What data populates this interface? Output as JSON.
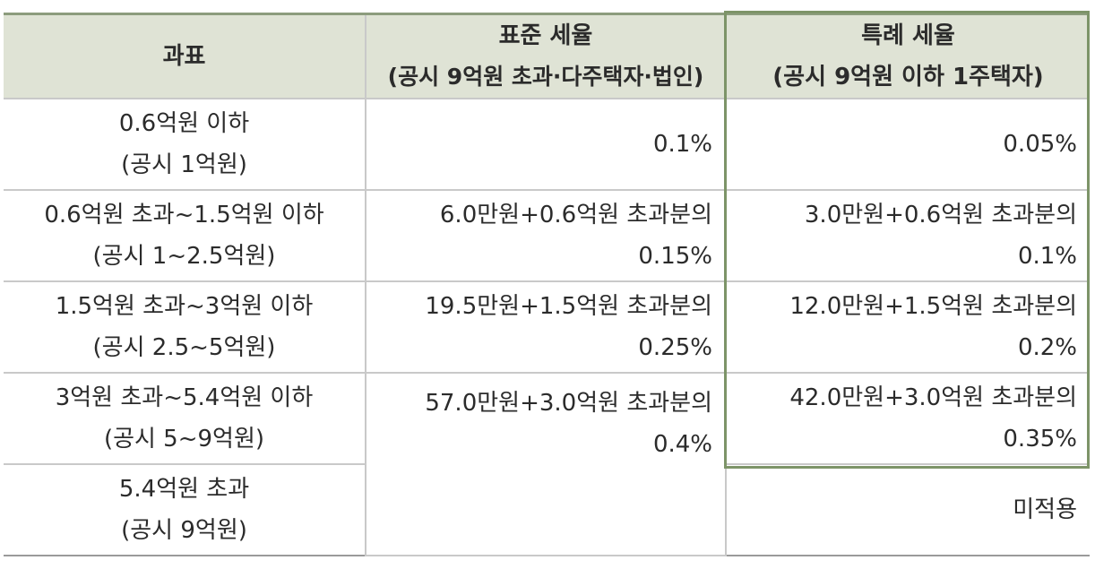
{
  "header": {
    "col1": "과표",
    "col2_line1": "표준 세율",
    "col2_line2": "(공시 9억원 초과·다주택자·법인)",
    "col3_line1": "특례 세율",
    "col3_line2": "(공시 9억원 이하 1주택자)"
  },
  "rows": [
    {
      "base1": "0.6억원 이하",
      "base2": "(공시 1억원)",
      "std1": "0.1%",
      "std2": "",
      "sp1": "0.05%",
      "sp2": ""
    },
    {
      "base1": "0.6억원 초과~1.5억원 이하",
      "base2": "(공시 1~2.5억원)",
      "std1": "6.0만원+0.6억원 초과분의",
      "std2": "0.15%",
      "sp1": "3.0만원+0.6억원 초과분의",
      "sp2": "0.1%"
    },
    {
      "base1": "1.5억원 초과~3억원 이하",
      "base2": "(공시 2.5~5억원)",
      "std1": "19.5만원+1.5억원 초과분의",
      "std2": "0.25%",
      "sp1": "12.0만원+1.5억원 초과분의",
      "sp2": "0.2%"
    },
    {
      "base1": "3억원 초과~5.4억원 이하",
      "base2": "(공시 5~9억원)",
      "std1": "57.0만원+3.0억원 초과분의",
      "std2": "0.4%",
      "sp1": "42.0만원+3.0억원 초과분의",
      "sp2": "0.35%"
    },
    {
      "base1": "5.4억원 초과",
      "base2": "(공시 9억원)",
      "std1": "",
      "std2": "",
      "sp1": "미적용",
      "sp2": ""
    }
  ]
}
